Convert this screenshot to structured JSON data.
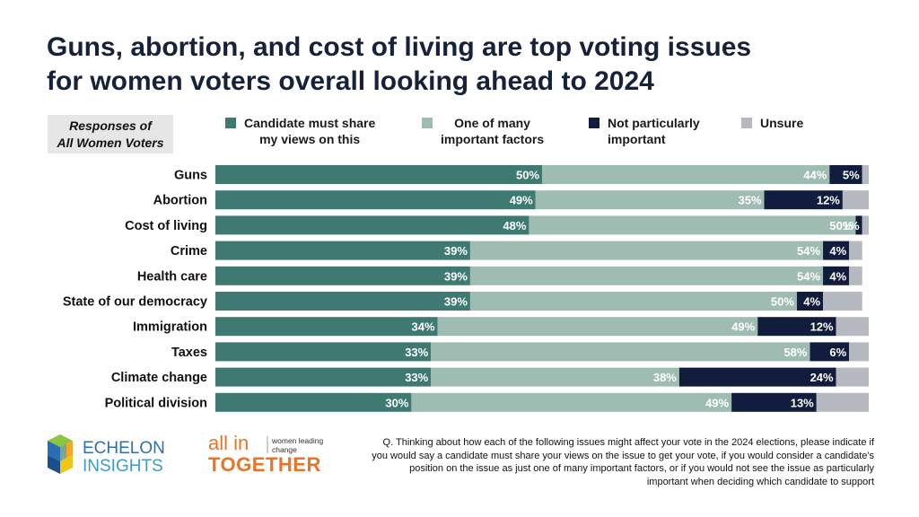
{
  "title_line1": "Guns, abortion, and cost of living are top voting issues",
  "title_line2": "for women voters overall looking ahead to 2024",
  "subtitle_line1": "Responses of",
  "subtitle_line2": "All Women Voters",
  "legend": [
    {
      "line1": "Candidate must share",
      "line2": "my views on this",
      "color": "#3f7a72"
    },
    {
      "line1": "One of many",
      "line2": "important factors",
      "color": "#9fbcb2"
    },
    {
      "line1": "Not particularly",
      "line2": "important",
      "color": "#121c3c"
    },
    {
      "line1": "Unsure",
      "line2": "",
      "color": "#b6b9bf"
    }
  ],
  "chart_data": {
    "type": "bar",
    "orientation": "horizontal",
    "stacked": true,
    "categories": [
      "Guns",
      "Abortion",
      "Cost of living",
      "Crime",
      "Health care",
      "State of our democracy",
      "Immigration",
      "Taxes",
      "Climate change",
      "Political division"
    ],
    "series": [
      {
        "name": "Candidate must share my views on this",
        "values": [
          50,
          49,
          48,
          39,
          39,
          39,
          34,
          33,
          33,
          30
        ],
        "color": "#3f7a72"
      },
      {
        "name": "One of many important factors",
        "values": [
          44,
          35,
          50,
          54,
          54,
          50,
          49,
          58,
          38,
          49
        ],
        "color": "#9fbcb2"
      },
      {
        "name": "Not particularly important",
        "values": [
          5,
          12,
          1,
          4,
          4,
          4,
          12,
          6,
          24,
          13
        ],
        "color": "#121c3c"
      },
      {
        "name": "Unsure",
        "values": [
          1,
          4,
          1,
          2,
          2,
          6,
          5,
          3,
          5,
          8
        ],
        "color": "#b6b9bf"
      }
    ],
    "xlim": [
      0,
      100
    ],
    "grid": false,
    "legend_position": "top"
  },
  "logos": {
    "echelon_top": "ECHELON",
    "echelon_bottom": "INSIGHTS",
    "allin_top": "all in",
    "allin_tag1": "women leading",
    "allin_tag2": "change",
    "allin_bottom": "TOGETHER"
  },
  "footnote": "Q. Thinking about how each of the following issues might affect your vote in the 2024 elections, please indicate if you would say a candidate must share your views on the issue to get your vote, if you would consider a candidate's position on the issue as just one of many important factors, or if you would not see the issue as particularly important when deciding which candidate to support"
}
